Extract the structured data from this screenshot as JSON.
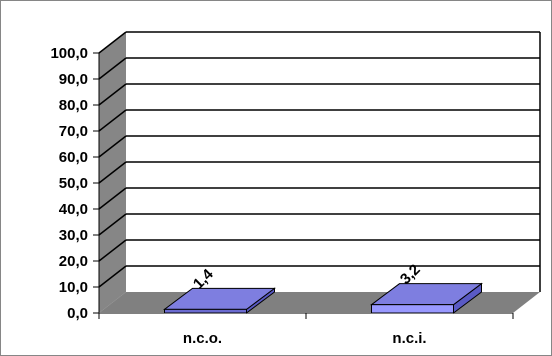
{
  "chart_data": {
    "type": "bar",
    "categories": [
      "n.c.o.",
      "n.c.i."
    ],
    "values": [
      1.4,
      3.2
    ],
    "value_labels": [
      "1,4",
      "3,2"
    ],
    "ylim": [
      0,
      100
    ],
    "yticks": [
      "0,0",
      "10,0",
      "20,0",
      "30,0",
      "40,0",
      "50,0",
      "60,0",
      "70,0",
      "80,0",
      "90,0",
      "100,0"
    ],
    "grid": true,
    "legend": "none",
    "style": "3d-column",
    "colors": {
      "bar_series": [
        "#6b6bd0",
        "#9999ff"
      ],
      "bar_side": "#5a5ac4",
      "bar_top": "#7e7ee0",
      "wall": "#ffffff",
      "floor": "#808080",
      "side_wall": "#868686",
      "gridline": "#000000"
    }
  }
}
